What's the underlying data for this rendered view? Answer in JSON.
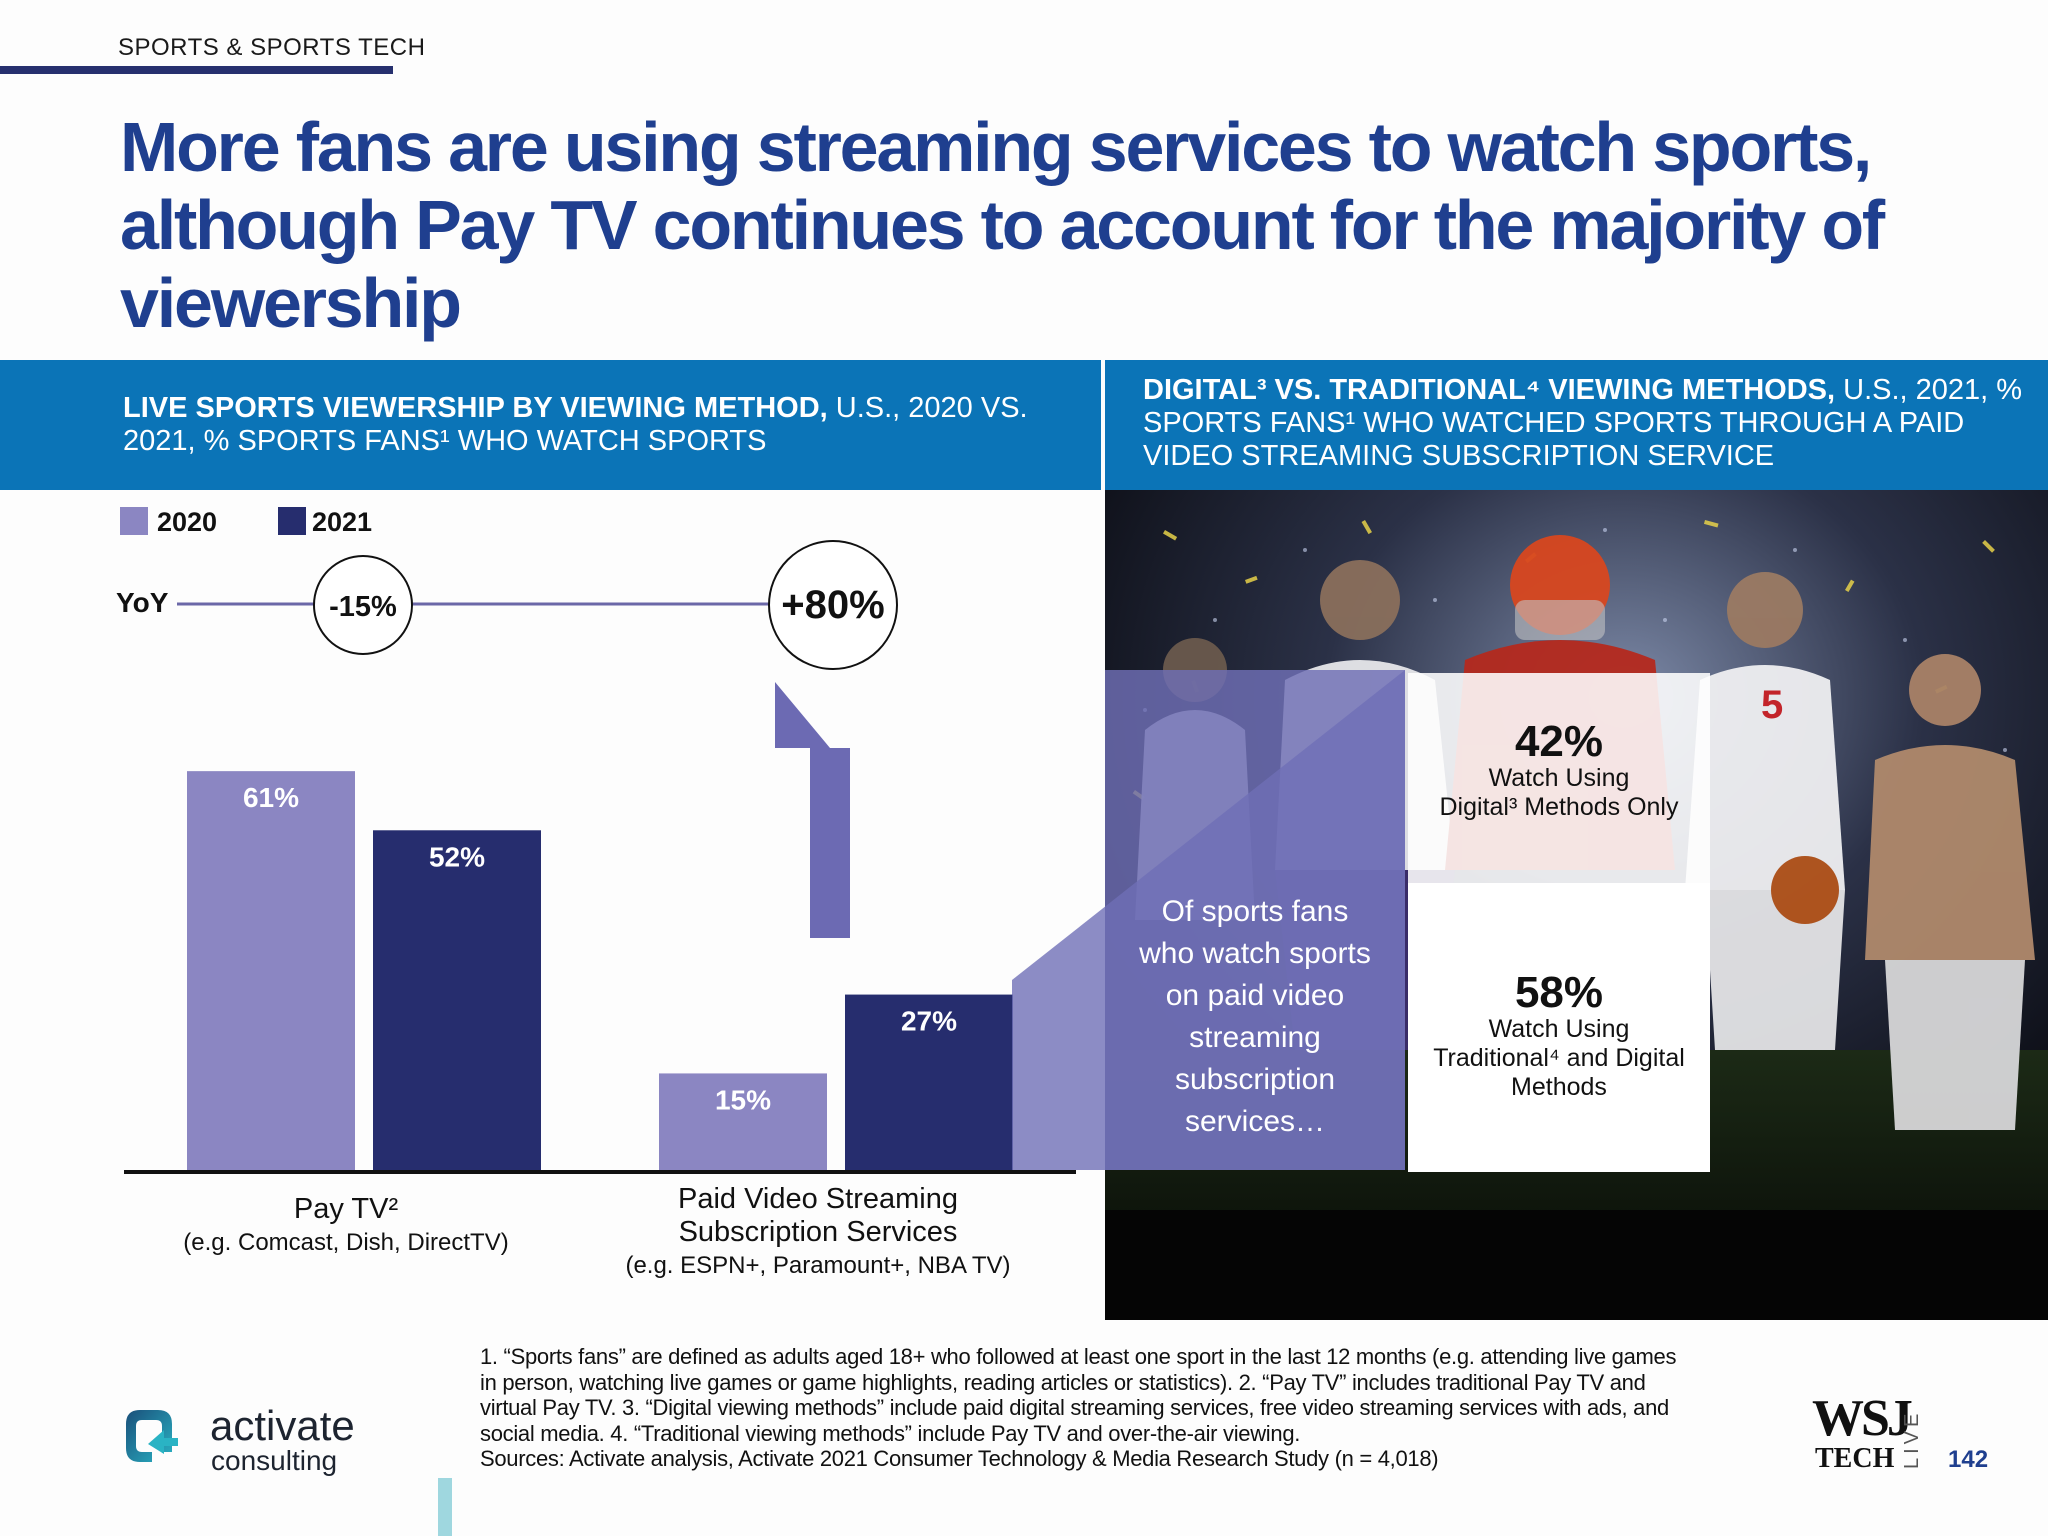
{
  "section_label": "SPORTS & SPORTS TECH",
  "headline": "More fans are using streaming services to watch sports, although Pay TV continues to account for the majority of viewership",
  "left_panel": {
    "title_bold": "LIVE SPORTS VIEWERSHIP BY VIEWING METHOD,",
    "title_rest": " U.S., 2020 VS. 2021, % SPORTS FANS¹ WHO WATCH SPORTS"
  },
  "right_panel": {
    "title_bold": "DIGITAL³ VS. TRADITIONAL⁴ VIEWING METHODS,",
    "title_rest": " U.S., 2021, % SPORTS FANS¹ WHO WATCHED SPORTS THROUGH A PAID VIDEO STREAMING SUBSCRIPTION SERVICE",
    "intro_lines": [
      "Of sports fans",
      "who watch sports",
      "on paid video",
      "streaming",
      "subscription",
      "services…"
    ],
    "jersey_number": "5"
  },
  "yoy_label": "YoY",
  "colors": {
    "y2020": "#8b86c2",
    "y2021": "#262d6e",
    "header_blue": "#0b74b7",
    "title_blue": "#1f3f8f",
    "funnel": "#6f6fb6"
  },
  "chart_data": [
    {
      "type": "bar",
      "legend": [
        "2020",
        "2021"
      ],
      "categories": [
        "Pay TV²",
        "Paid Video Streaming Subscription Services"
      ],
      "category_notes": [
        "(e.g. Comcast, Dish, DirectTV)",
        "(e.g. ESPN+, Paramount+, NBA TV)"
      ],
      "series": [
        {
          "name": "2020",
          "values": [
            61,
            15
          ]
        },
        {
          "name": "2021",
          "values": [
            52,
            27
          ]
        }
      ],
      "value_labels": [
        [
          "61%",
          "52%"
        ],
        [
          "15%",
          "27%"
        ]
      ],
      "yoy": [
        "-15%",
        "+80%"
      ],
      "ylim": [
        0,
        70
      ],
      "grid": false,
      "legend_position": "top-left"
    },
    {
      "type": "bar",
      "stacked": true,
      "segments": [
        {
          "value": 42,
          "label": "42%",
          "text": "Watch Using Digital³ Methods Only"
        },
        {
          "value": 58,
          "label": "58%",
          "text": "Watch Using Traditional⁴ and Digital Methods"
        }
      ]
    }
  ],
  "footnote": [
    "1. “Sports fans” are defined as adults aged 18+ who followed at least one sport in the last 12 months (e.g. attending live games",
    "in person, watching live games or game highlights, reading articles or statistics).  2. “Pay TV” includes traditional Pay TV and",
    "virtual Pay TV.  3. “Digital viewing methods” include paid digital streaming services, free video streaming services with ads, and",
    "social media.  4. “Traditional viewing methods” include Pay TV and over-the-air viewing.",
    "Sources: Activate analysis, Activate 2021 Consumer Technology & Media Research Study (n = 4,018)"
  ],
  "logo": {
    "line1": "activate",
    "line2": "consulting"
  },
  "wsj": {
    "line1": "WSJ",
    "line2": "TECH",
    "vertical": "LIVE"
  },
  "page_number": "142"
}
